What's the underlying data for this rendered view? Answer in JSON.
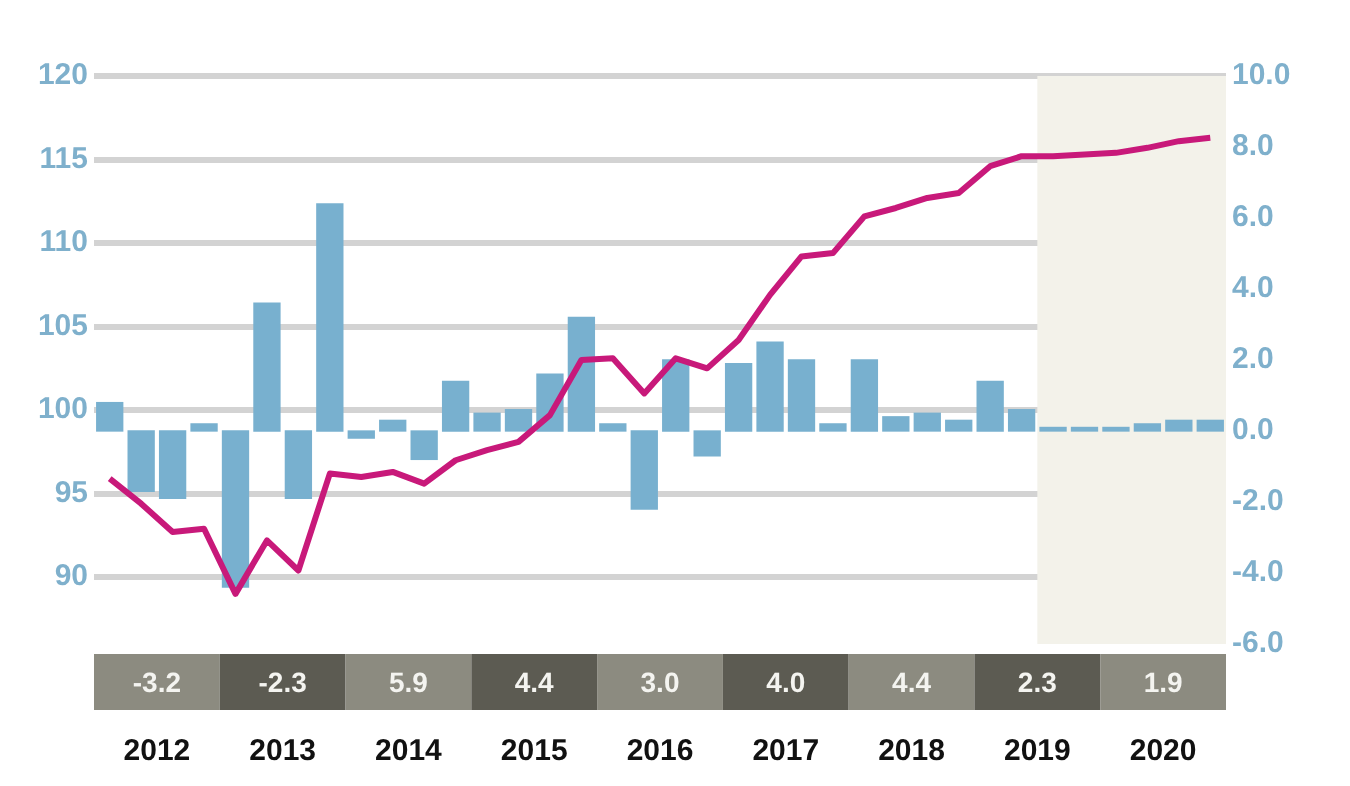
{
  "chart_data": {
    "type": "bar",
    "x": [
      2012.125,
      2012.375,
      2012.625,
      2012.875,
      2013.125,
      2013.375,
      2013.625,
      2013.875,
      2014.125,
      2014.375,
      2014.625,
      2014.875,
      2015.125,
      2015.375,
      2015.625,
      2015.875,
      2016.125,
      2016.375,
      2016.625,
      2016.875,
      2017.125,
      2017.375,
      2017.625,
      2017.875,
      2018.125,
      2018.375,
      2018.625,
      2018.875,
      2019.125,
      2019.375,
      2019.625,
      2019.875,
      2020.125,
      2020.375,
      2020.625,
      2020.875
    ],
    "series": [
      {
        "axis": "y2",
        "color": "#78b0cf",
        "values": [
          0.8,
          -1.7,
          -1.9,
          0.2,
          -4.4,
          3.6,
          -1.9,
          6.4,
          -0.2,
          0.3,
          -0.8,
          1.4,
          0.5,
          0.6,
          1.6,
          3.2,
          0.2,
          -2.2,
          2.0,
          -0.7,
          1.9,
          2.5,
          2.0,
          0.2,
          2.0,
          0.4,
          0.5,
          0.3,
          1.4,
          0.6,
          0.1,
          0.1,
          0.1,
          0.2,
          0.3,
          0.3
        ]
      },
      {
        "type": "line",
        "axis": "y",
        "color": "#c8197a",
        "values": [
          95.9,
          94.4,
          92.7,
          92.9,
          89.0,
          92.2,
          90.4,
          96.2,
          96.0,
          96.3,
          95.6,
          97.0,
          97.6,
          98.1,
          99.7,
          103.0,
          103.1,
          101.0,
          103.1,
          102.5,
          104.2,
          106.9,
          109.2,
          109.4,
          111.6,
          112.1,
          112.7,
          113.0,
          114.6,
          115.2,
          115.2,
          115.3,
          115.4,
          115.7,
          116.1,
          116.3
        ]
      }
    ],
    "xlim": [
      2012,
      2021
    ],
    "xticks": [
      {
        "value": 2012.5,
        "label": "2012"
      },
      {
        "value": 2013.5,
        "label": "2013"
      },
      {
        "value": 2014.5,
        "label": "2014"
      },
      {
        "value": 2015.5,
        "label": "2015"
      },
      {
        "value": 2016.5,
        "label": "2016"
      },
      {
        "value": 2017.5,
        "label": "2017"
      },
      {
        "value": 2018.5,
        "label": "2018"
      },
      {
        "value": 2019.5,
        "label": "2019"
      },
      {
        "value": 2020.5,
        "label": "2020"
      }
    ],
    "ylim": [
      86,
      120
    ],
    "yticks": [
      90,
      95,
      100,
      105,
      110,
      115,
      120
    ],
    "y2lim": [
      -6,
      10
    ],
    "y2ticks": [
      {
        "value": -6,
        "label": "-6.0"
      },
      {
        "value": -4,
        "label": "-4.0"
      },
      {
        "value": -2,
        "label": "-2.0"
      },
      {
        "value": 0,
        "label": "0.0"
      },
      {
        "value": 2,
        "label": "2.0"
      },
      {
        "value": 4,
        "label": "4.0"
      },
      {
        "value": 6,
        "label": "6.0"
      },
      {
        "value": 8,
        "label": "8.0"
      },
      {
        "value": 10,
        "label": "10.0"
      }
    ],
    "bands": [
      {
        "axis": "x",
        "from": 2019.5,
        "to": 2021,
        "color": "#f3f2ea"
      }
    ],
    "annotations": [
      "-3.2",
      "-2.3",
      "5.9",
      "4.4",
      "3.0",
      "4.0",
      "4.4",
      "2.3",
      "1.9"
    ],
    "grid": "y",
    "legend": false,
    "marker": "none",
    "line_style": "solid"
  }
}
